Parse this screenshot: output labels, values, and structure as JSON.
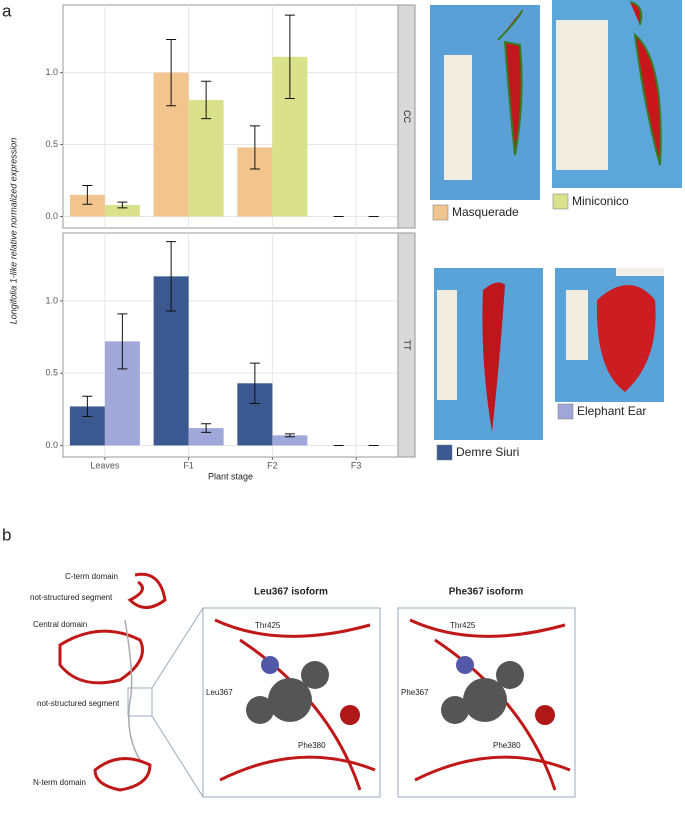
{
  "panel_labels": [
    "a",
    "b"
  ],
  "chart_data": {
    "type": "bar",
    "categories": [
      "Leaves",
      "F1",
      "F2",
      "F3"
    ],
    "xlabel": "Plant stage",
    "ylabel": "Longifolia 1-like relative normalized expression",
    "grid": true,
    "facets": [
      {
        "label": "CC",
        "ylim": [
          -0.08,
          1.47
        ],
        "yticks": [
          {
            "value": 0,
            "label": "0.0"
          },
          {
            "value": 0.5,
            "label": "0.5"
          },
          {
            "value": 1,
            "label": "1.0"
          }
        ],
        "series": [
          {
            "name": "Masquerade",
            "color": "#f2c48e",
            "values": [
              0.15,
              1.0,
              0.48,
              0.0
            ],
            "errors": [
              0.065,
              0.23,
              0.15,
              0.0
            ]
          },
          {
            "name": "Miniconico",
            "color": "#d9e18b",
            "values": [
              0.08,
              0.81,
              1.11,
              0.0
            ],
            "errors": [
              0.02,
              0.13,
              0.29,
              0.0
            ]
          }
        ]
      },
      {
        "label": "TT",
        "ylim": [
          -0.08,
          1.47
        ],
        "yticks": [
          {
            "value": 0,
            "label": "0.0"
          },
          {
            "value": 0.5,
            "label": "0.5"
          },
          {
            "value": 1,
            "label": "1.0"
          }
        ],
        "series": [
          {
            "name": "Demre Siuri",
            "color": "#3b5990",
            "values": [
              0.27,
              1.17,
              0.43,
              0.0
            ],
            "errors": [
              0.07,
              0.24,
              0.14,
              0.0
            ]
          },
          {
            "name": "Elephant Ear",
            "color": "#a0a7d9",
            "values": [
              0.72,
              0.12,
              0.07,
              0.0
            ],
            "errors": [
              0.19,
              0.03,
              0.01,
              0.0
            ]
          }
        ]
      }
    ]
  },
  "panel_b": {
    "domains": [
      "C-term domain",
      "not-structured segment",
      "Central domain",
      "not-structured segment",
      "N-term domain"
    ],
    "isoforms": [
      {
        "title": "Leu367 isoform",
        "labels": [
          "Thr425",
          "Leu367",
          "Phe380"
        ]
      },
      {
        "title": "Phe367 isoform",
        "labels": [
          "Thr425",
          "Phe367",
          "Phe380"
        ]
      }
    ]
  }
}
